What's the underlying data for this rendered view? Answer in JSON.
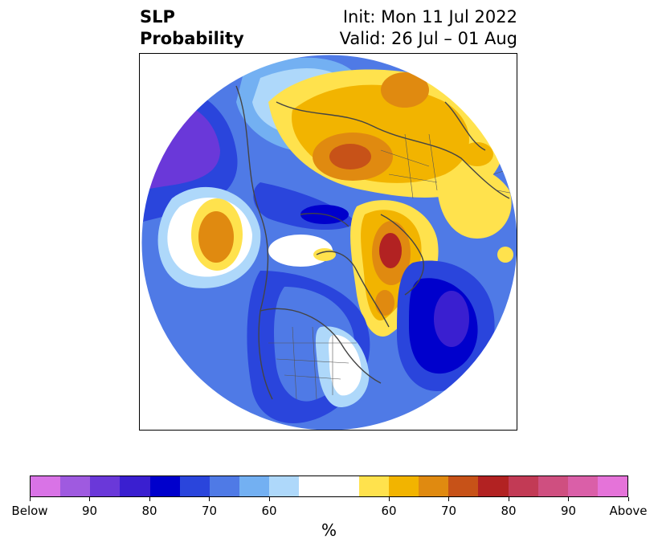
{
  "header": {
    "title_line1": "SLP",
    "title_line2": "Probability",
    "init_label": "Init: Mon 11 Jul 2022",
    "valid_label": "Valid: 26 Jul – 01 Aug"
  },
  "colorbar": {
    "colors": [
      "#d973e6",
      "#9f5ae0",
      "#6a38d9",
      "#3a1fd0",
      "#0000cc",
      "#2a45dc",
      "#4f7ae6",
      "#73b0f2",
      "#aed8fa",
      "#ffffff",
      "#ffffff",
      "#ffe24d",
      "#f2b400",
      "#e08a10",
      "#c75218",
      "#b22222",
      "#c23a55",
      "#cf4f80",
      "#da5fa8",
      "#e573d9"
    ],
    "tick_labels": [
      "Below",
      "90",
      "80",
      "70",
      "60",
      "60",
      "70",
      "80",
      "90",
      "Above"
    ],
    "unit_label": "%"
  }
}
